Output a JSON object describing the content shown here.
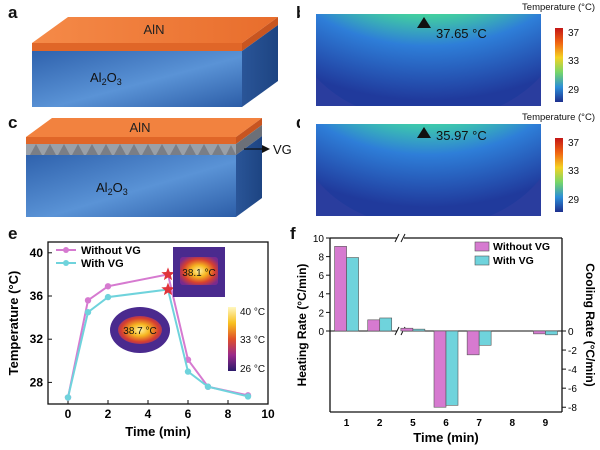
{
  "panels": {
    "a": {
      "label": "a",
      "top_layer": "AlN",
      "substrate": "Al2O3"
    },
    "b": {
      "label": "b",
      "temp_title": "Temperature (°C)",
      "peak": "37.65 °C",
      "scale_ticks": [
        "37",
        "33",
        "29"
      ]
    },
    "c": {
      "label": "c",
      "top_layer": "AlN",
      "substrate": "Al2O3",
      "vg_label": "VG"
    },
    "d": {
      "label": "d",
      "temp_title": "Temperature (°C)",
      "peak": "35.97 °C",
      "scale_ticks": [
        "37",
        "33",
        "29"
      ]
    },
    "e": {
      "label": "e",
      "inset_with_vg": "38.1 °C",
      "inset_without_vg": "38.7 °C",
      "inset_scale_ticks": [
        "40 °C",
        "33 °C",
        "26 °C"
      ]
    },
    "f": {
      "label": "f"
    }
  },
  "colors": {
    "without_vg": "#d67ad0",
    "with_vg": "#6fd3dc",
    "aln": "#f07a3a",
    "al2o3": "#3f73b8",
    "star": "#e0333a"
  },
  "chart_data": [
    {
      "id": "e",
      "type": "line",
      "xlabel": "Time (min)",
      "ylabel": "Temperature (°C)",
      "xlim": [
        -1,
        10
      ],
      "ylim": [
        26,
        41
      ],
      "xticks": [
        0,
        2,
        4,
        6,
        8,
        10
      ],
      "yticks": [
        28,
        32,
        36,
        40
      ],
      "series": [
        {
          "name": "Without VG",
          "x": [
            0,
            1,
            2,
            5,
            6,
            7,
            9
          ],
          "y": [
            26.6,
            35.6,
            36.9,
            38.0,
            30.1,
            27.6,
            26.8
          ]
        },
        {
          "name": "With VG",
          "x": [
            0,
            1,
            2,
            5,
            6,
            7,
            9
          ],
          "y": [
            26.6,
            34.5,
            35.9,
            36.6,
            29.0,
            27.6,
            26.7
          ]
        }
      ],
      "markers": [
        {
          "x": 5,
          "y": 38.0
        },
        {
          "x": 5,
          "y": 36.6
        }
      ]
    },
    {
      "id": "f",
      "type": "bar",
      "categories": [
        "1",
        "2",
        "5",
        "6",
        "7",
        "8",
        "9"
      ],
      "xlabel": "Time (min)",
      "ylabel_left": "Heating Rate (°C/min)",
      "ylabel_right": "Cooling Rate (°C/min)",
      "heating_ylim": [
        0,
        10
      ],
      "heating_yticks": [
        0,
        2,
        4,
        6,
        8,
        10
      ],
      "cooling_ylim": [
        -8.5,
        0
      ],
      "cooling_yticks": [
        0,
        -2,
        -4,
        -6,
        -8
      ],
      "series": [
        {
          "name": "Without VG",
          "heating": [
            9.1,
            1.2,
            0.3,
            0,
            0,
            0,
            0
          ],
          "cooling": [
            0,
            0,
            0,
            -8.0,
            -2.5,
            0,
            -0.3
          ]
        },
        {
          "name": "With VG",
          "heating": [
            7.9,
            1.4,
            0.2,
            0,
            0,
            0,
            0
          ],
          "cooling": [
            0,
            0,
            0,
            -7.8,
            -1.5,
            0,
            -0.4
          ]
        }
      ]
    }
  ]
}
